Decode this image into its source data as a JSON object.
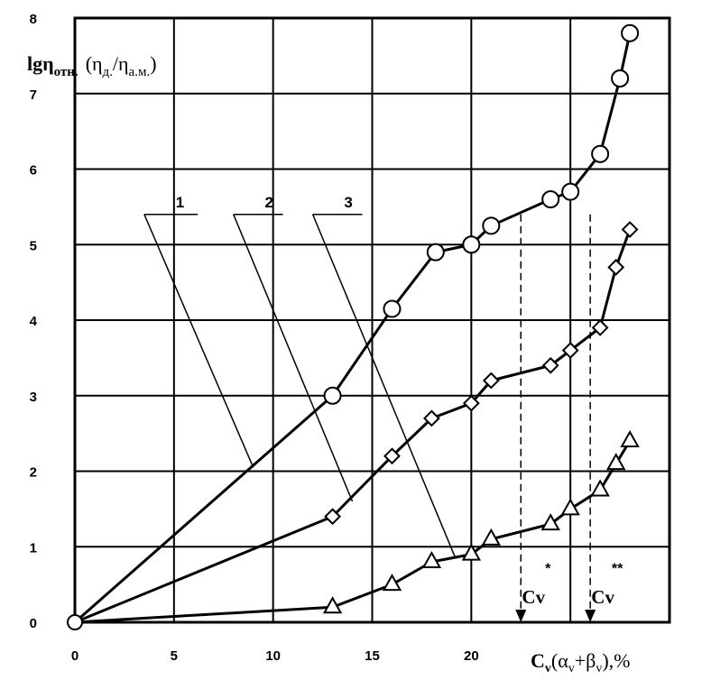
{
  "chart_data": {
    "type": "line",
    "xlim": [
      0,
      30
    ],
    "ylim": [
      0,
      8
    ],
    "x_ticks": [
      "0",
      "5",
      "10",
      "15",
      "20"
    ],
    "y_ticks": [
      "0",
      "1",
      "2",
      "3",
      "4",
      "5",
      "6",
      "7",
      "8"
    ],
    "grid": true,
    "ylabel_main": "lgη",
    "ylabel_sub": "отн.",
    "ylabel_ratio_num": "(η",
    "ylabel_ratio_num_sub": "д.",
    "ylabel_ratio_den": "/η",
    "ylabel_ratio_den_sub": "а.м.",
    "ylabel_close": ")",
    "xlabel_c": "C",
    "xlabel_c_sub": "v",
    "xlabel_rest": "(α",
    "xlabel_a_sub": "v",
    "xlabel_plus": "+β",
    "xlabel_b_sub": "v",
    "xlabel_unit": "),%",
    "series": [
      {
        "name": "1",
        "marker": "circle",
        "x": [
          0,
          13,
          16,
          18.2,
          20,
          21,
          24,
          25,
          26.5,
          27.5,
          28
        ],
        "y": [
          0,
          3.0,
          4.15,
          4.9,
          5.0,
          5.25,
          5.6,
          5.7,
          6.2,
          7.2,
          7.8
        ]
      },
      {
        "name": "2",
        "marker": "diamond",
        "x": [
          0,
          13,
          16,
          18,
          20,
          21,
          24,
          25,
          26.5,
          27.3,
          28
        ],
        "y": [
          0,
          1.4,
          2.2,
          2.7,
          2.9,
          3.2,
          3.4,
          3.6,
          3.9,
          4.7,
          5.2
        ]
      },
      {
        "name": "3",
        "marker": "triangle",
        "x": [
          0,
          13,
          16,
          18,
          20,
          21,
          24,
          25,
          26.5,
          27.3,
          28
        ],
        "y": [
          0,
          0.2,
          0.5,
          0.8,
          0.9,
          1.1,
          1.3,
          1.5,
          1.75,
          2.1,
          2.4
        ]
      }
    ],
    "annotations": {
      "callout_labels": [
        "1",
        "2",
        "3"
      ],
      "cv_markers": [
        {
          "label": "Cv",
          "star": "*",
          "x": 22.5
        },
        {
          "label": "Cv",
          "star": "**",
          "x": 26
        }
      ]
    }
  }
}
